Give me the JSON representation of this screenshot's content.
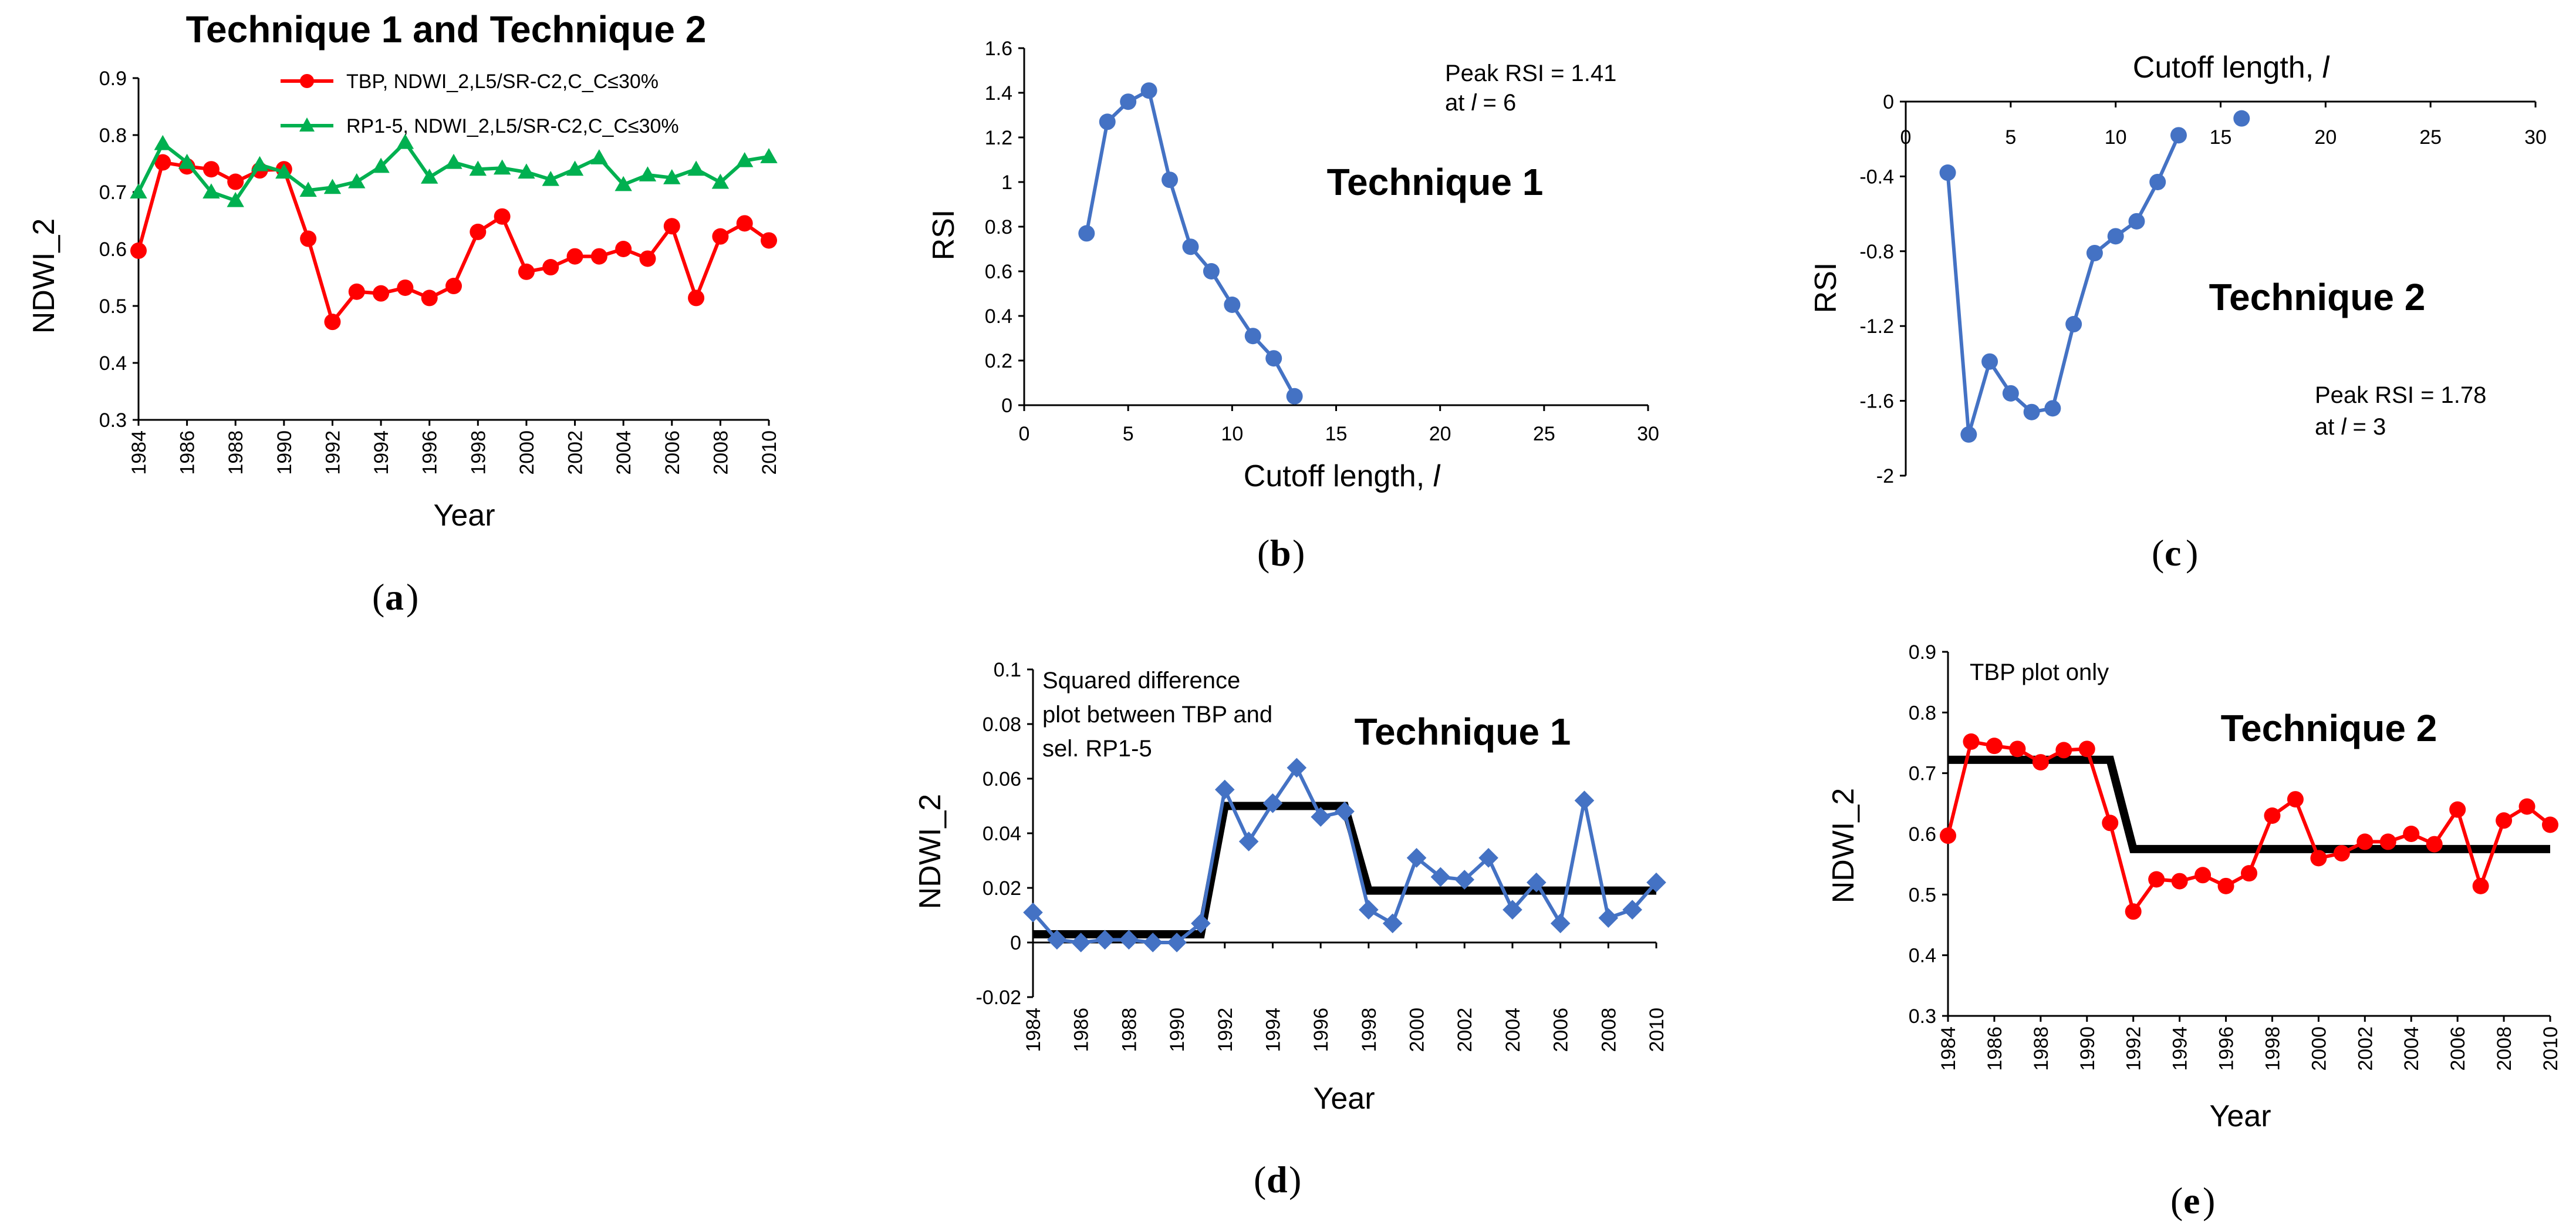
{
  "chart_data": [
    {
      "id": "a",
      "type": "line",
      "title": "Technique 1 and Technique 2",
      "xlabel": "Year",
      "ylabel": "NDWI_2",
      "caption_label": "a",
      "xlim": [
        1984,
        2010
      ],
      "ylim": [
        0.3,
        0.9
      ],
      "xticks": [
        1984,
        1986,
        1988,
        1990,
        1992,
        1994,
        1996,
        1998,
        2000,
        2002,
        2004,
        2006,
        2008,
        2010
      ],
      "yticks": [
        0.3,
        0.4,
        0.5,
        0.6,
        0.7,
        0.8,
        0.9
      ],
      "ytick_labels": [
        "0.3",
        "0.4",
        "0.5",
        "0.6",
        "0.7",
        "0.8",
        "0.9"
      ],
      "legend_position": "top-right",
      "x": [
        1984,
        1985,
        1986,
        1987,
        1988,
        1989,
        1990,
        1991,
        1992,
        1993,
        1994,
        1995,
        1996,
        1997,
        1998,
        1999,
        2000,
        2001,
        2002,
        2003,
        2004,
        2005,
        2006,
        2007,
        2008,
        2009,
        2010
      ],
      "series": [
        {
          "name": "TBP, NDWI_2,L5/SR-C2,C_C≤30%",
          "color": "#ff0000",
          "marker": "circle",
          "values": [
            0.597,
            0.752,
            0.745,
            0.74,
            0.718,
            0.738,
            0.74,
            0.618,
            0.472,
            0.525,
            0.522,
            0.532,
            0.514,
            0.535,
            0.63,
            0.657,
            0.56,
            0.568,
            0.587,
            0.587,
            0.6,
            0.583,
            0.64,
            0.514,
            0.622,
            0.645,
            0.615
          ]
        },
        {
          "name": "RP1-5, NDWI_2,L5/SR-C2,C_C≤30%",
          "color": "#00b050",
          "marker": "triangle",
          "values": [
            0.7,
            0.785,
            0.752,
            0.7,
            0.685,
            0.748,
            0.735,
            0.703,
            0.708,
            0.718,
            0.745,
            0.787,
            0.726,
            0.752,
            0.74,
            0.742,
            0.735,
            0.722,
            0.74,
            0.76,
            0.713,
            0.73,
            0.725,
            0.74,
            0.717,
            0.755,
            0.762
          ]
        }
      ]
    },
    {
      "id": "b",
      "type": "line",
      "title": "Technique 1",
      "xlabel": "Cutoff length, ",
      "xlabel_var": "l",
      "ylabel": "RSI",
      "caption_label": "b",
      "xlim": [
        0,
        30
      ],
      "ylim": [
        0,
        1.6
      ],
      "xticks": [
        0,
        5,
        10,
        15,
        20,
        25,
        30
      ],
      "yticks": [
        0,
        0.2,
        0.4,
        0.6,
        0.8,
        1.0,
        1.2,
        1.4,
        1.6
      ],
      "ytick_labels": [
        "0",
        "0.2",
        "0.4",
        "0.6",
        "0.8",
        "1",
        "1.2",
        "1.4",
        "1.6"
      ],
      "annotation_line1": "Peak RSI = 1.41",
      "annotation_line2_pre": "at ",
      "annotation_line2_var": "l",
      "annotation_line2_post": " = 6",
      "series": [
        {
          "name": "RSI",
          "color": "#4472c4",
          "marker": "circle",
          "x": [
            3,
            4,
            5,
            6,
            7,
            8,
            9,
            10,
            11,
            12,
            13
          ],
          "values": [
            0.77,
            1.27,
            1.36,
            1.41,
            1.01,
            0.71,
            0.6,
            0.45,
            0.31,
            0.21,
            0.04
          ]
        }
      ]
    },
    {
      "id": "c",
      "type": "line",
      "title": "Technique 2",
      "xlabel": "Cutoff length, ",
      "xlabel_var": "l",
      "ylabel": "RSI",
      "caption_label": "c",
      "xlim": [
        0,
        30
      ],
      "ylim": [
        -2,
        0
      ],
      "xticks": [
        0,
        5,
        10,
        15,
        20,
        25,
        30
      ],
      "yticks": [
        0,
        -0.4,
        -0.8,
        -1.2,
        -1.6,
        -2
      ],
      "ytick_labels": [
        "0",
        "-0.4",
        "-0.8",
        "-1.2",
        "-1.6",
        "-2"
      ],
      "annotation_line1": "Peak RSI = 1.78",
      "annotation_line2_pre": "at ",
      "annotation_line2_var": "l",
      "annotation_line2_post": " = 3",
      "series": [
        {
          "name": "RSI",
          "color": "#4472c4",
          "marker": "circle",
          "x": [
            2,
            3,
            4,
            5,
            6,
            7,
            8,
            9,
            10,
            11,
            12,
            13
          ],
          "values": [
            -0.38,
            -1.78,
            -1.39,
            -1.56,
            -1.66,
            -1.64,
            -1.19,
            -0.81,
            -0.72,
            -0.64,
            -0.43,
            -0.18
          ]
        },
        {
          "name": "RSI (isolated point)",
          "color": "#4472c4",
          "marker": "circle",
          "x": [
            16
          ],
          "values": [
            -0.09
          ],
          "connected": false
        }
      ]
    },
    {
      "id": "d",
      "type": "line",
      "title": "Technique 1",
      "xlabel": "Year",
      "ylabel": "NDWI_2",
      "caption_label": "d",
      "xlim": [
        1984,
        2010
      ],
      "ylim": [
        -0.02,
        0.1
      ],
      "xticks": [
        1984,
        1986,
        1988,
        1990,
        1992,
        1994,
        1996,
        1998,
        2000,
        2002,
        2004,
        2006,
        2008,
        2010
      ],
      "yticks": [
        -0.02,
        0,
        0.02,
        0.04,
        0.06,
        0.08,
        0.1
      ],
      "ytick_labels": [
        "-0.02",
        "0",
        "0.02",
        "0.04",
        "0.06",
        "0.08",
        "0.1"
      ],
      "annotation_lines": [
        "Squared difference",
        "plot  between TBP and",
        "sel. RP1-5"
      ],
      "x": [
        1984,
        1985,
        1986,
        1987,
        1988,
        1989,
        1990,
        1991,
        1992,
        1993,
        1994,
        1995,
        1996,
        1997,
        1998,
        1999,
        2000,
        2001,
        2002,
        2003,
        2004,
        2005,
        2006,
        2007,
        2008,
        2009,
        2010
      ],
      "series": [
        {
          "name": "Squared difference",
          "color": "#4472c4",
          "marker": "diamond",
          "values": [
            0.011,
            0.001,
            0.0,
            0.001,
            0.001,
            0.0,
            0.0,
            0.007,
            0.056,
            0.037,
            0.051,
            0.064,
            0.046,
            0.048,
            0.012,
            0.007,
            0.031,
            0.024,
            0.023,
            0.031,
            0.012,
            0.022,
            0.007,
            0.052,
            0.009,
            0.012,
            0.022
          ]
        }
      ],
      "step_line": {
        "color": "#000000",
        "x": [
          1984,
          1991,
          1992,
          1997,
          1998,
          2010
        ],
        "values": [
          0.003,
          0.003,
          0.05,
          0.05,
          0.019,
          0.019
        ]
      }
    },
    {
      "id": "e",
      "type": "line",
      "title": "Technique 2",
      "xlabel": "Year",
      "ylabel": "NDWI_2",
      "caption_label": "e",
      "xlim": [
        1984,
        2010
      ],
      "ylim": [
        0.3,
        0.9
      ],
      "xticks": [
        1984,
        1986,
        1988,
        1990,
        1992,
        1994,
        1996,
        1998,
        2000,
        2002,
        2004,
        2006,
        2008,
        2010
      ],
      "yticks": [
        0.3,
        0.4,
        0.5,
        0.6,
        0.7,
        0.8,
        0.9
      ],
      "ytick_labels": [
        "0.3",
        "0.4",
        "0.5",
        "0.6",
        "0.7",
        "0.8",
        "0.9"
      ],
      "annotation_lines": [
        "TBP plot only"
      ],
      "x": [
        1984,
        1985,
        1986,
        1987,
        1988,
        1989,
        1990,
        1991,
        1992,
        1993,
        1994,
        1995,
        1996,
        1997,
        1998,
        1999,
        2000,
        2001,
        2002,
        2003,
        2004,
        2005,
        2006,
        2007,
        2008,
        2009,
        2010
      ],
      "series": [
        {
          "name": "TBP",
          "color": "#ff0000",
          "marker": "circle",
          "values": [
            0.597,
            0.752,
            0.745,
            0.74,
            0.718,
            0.738,
            0.74,
            0.618,
            0.472,
            0.525,
            0.522,
            0.532,
            0.514,
            0.535,
            0.63,
            0.657,
            0.56,
            0.568,
            0.587,
            0.587,
            0.6,
            0.583,
            0.64,
            0.514,
            0.622,
            0.645,
            0.615
          ]
        }
      ],
      "step_line": {
        "color": "#000000",
        "x": [
          1984,
          1991,
          1992,
          2010
        ],
        "values": [
          0.722,
          0.722,
          0.575,
          0.575
        ]
      }
    }
  ]
}
